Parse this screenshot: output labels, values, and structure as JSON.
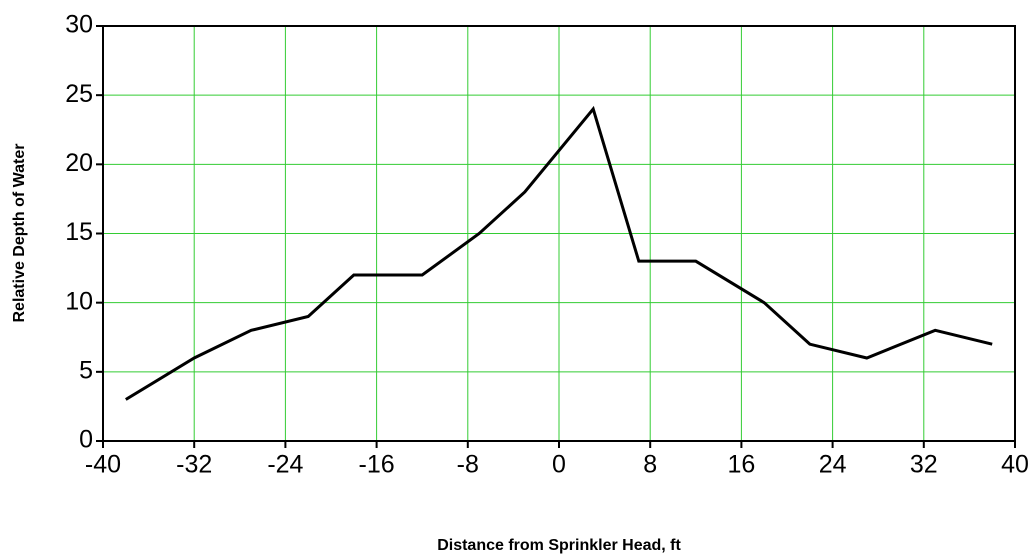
{
  "chart_data": {
    "type": "line",
    "xlabel": "Distance from Sprinkler Head, ft",
    "ylabel": "Relative Depth of Water",
    "x": [
      -38,
      -32,
      -27,
      -22,
      -18,
      -12,
      -7,
      -3,
      3,
      7,
      12,
      18,
      22,
      27,
      33,
      38
    ],
    "series": [
      {
        "name": "Relative Depth",
        "color": "#000000",
        "values": [
          3,
          6,
          8,
          9,
          12,
          12,
          15,
          18,
          24,
          13,
          13,
          10,
          7,
          6,
          8,
          7
        ]
      }
    ],
    "xlim": [
      -40,
      40
    ],
    "xticks": [
      -40,
      -32,
      -24,
      -16,
      -8,
      0,
      8,
      16,
      24,
      32,
      40
    ],
    "ylim": [
      0,
      30
    ],
    "yticks": [
      0,
      5,
      10,
      15,
      20,
      25,
      30
    ],
    "grid": true,
    "grid_color": "#33cc33"
  }
}
